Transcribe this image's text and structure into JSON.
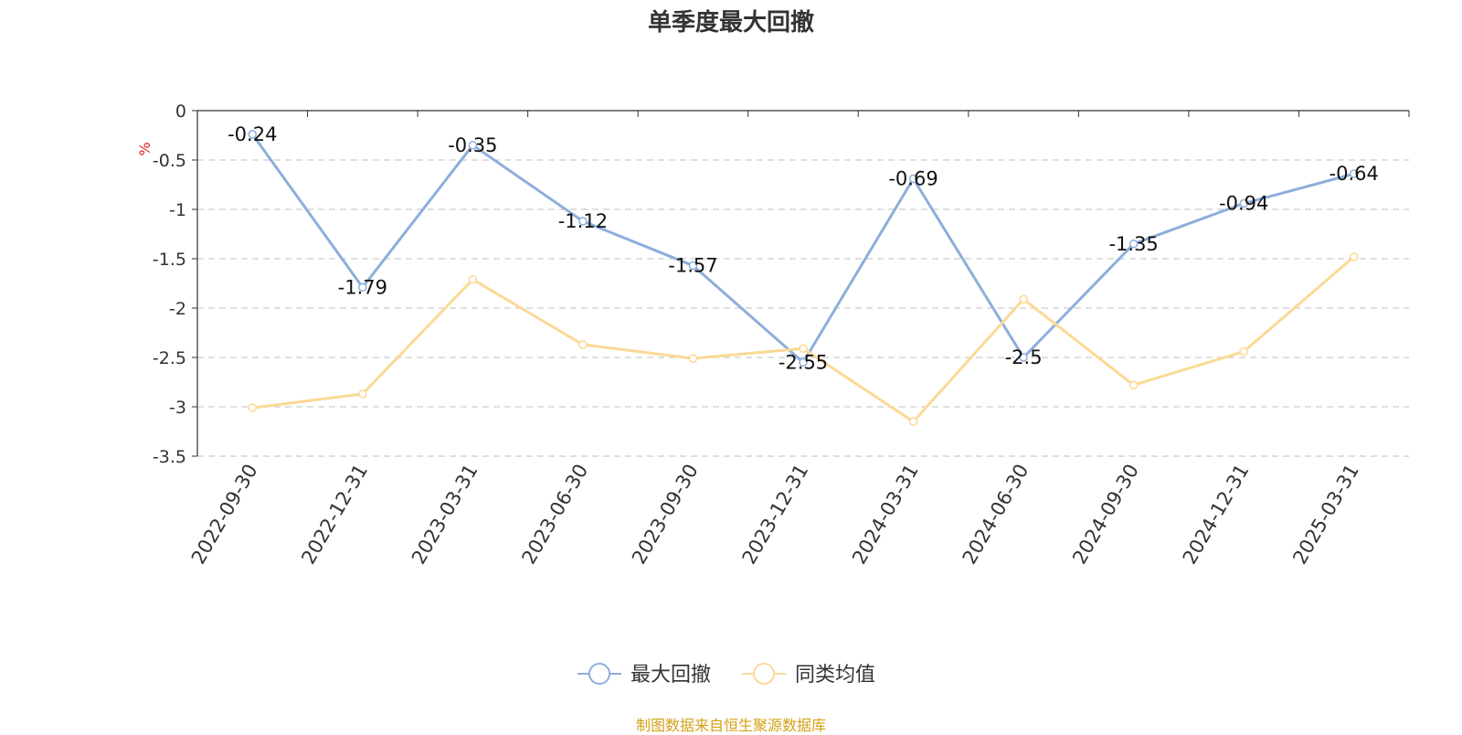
{
  "title": "单季度最大回撤",
  "source": "制图数据来自恒生聚源数据库",
  "chart_data": {
    "type": "line",
    "title": "单季度最大回撤",
    "ylabel": "%",
    "ylim": [
      -3.5,
      0
    ],
    "yticks": [
      0,
      -0.5,
      -1,
      -1.5,
      -2,
      -2.5,
      -3,
      -3.5
    ],
    "ytick_labels": [
      "0",
      "-0.5",
      "-1",
      "-1.5",
      "-2",
      "-2.5",
      "-3",
      "-3.5"
    ],
    "grid": true,
    "legend_position": "bottom-center",
    "categories": [
      "2022-09-30",
      "2022-12-31",
      "2023-03-31",
      "2023-06-30",
      "2023-09-30",
      "2023-12-31",
      "2024-03-31",
      "2024-06-30",
      "2024-09-30",
      "2024-12-31",
      "2025-03-31"
    ],
    "series": [
      {
        "name": "最大回撤",
        "color": "#8eaedb",
        "values": [
          -0.24,
          -1.79,
          -0.35,
          -1.12,
          -1.57,
          -2.55,
          -0.69,
          -2.5,
          -1.35,
          -0.94,
          -0.64
        ],
        "labels": [
          "-0.24",
          "-1.79",
          "-0.35",
          "-1.12",
          "-1.57",
          "-2.55",
          "-0.69",
          "-2.5",
          "-1.35",
          "-0.94",
          "-0.64"
        ]
      },
      {
        "name": "同类均值",
        "color": "#fbd995",
        "values": [
          -3.01,
          -2.87,
          -1.71,
          -2.37,
          -2.51,
          -2.41,
          -3.15,
          -1.91,
          -2.78,
          -2.44,
          -1.48
        ]
      }
    ]
  }
}
